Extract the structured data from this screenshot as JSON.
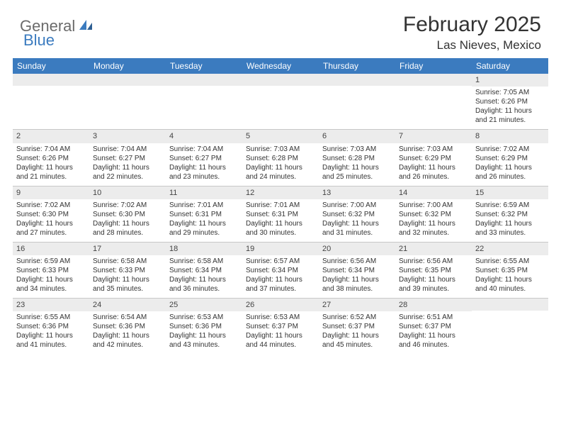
{
  "logo": {
    "text1": "General",
    "text2": "Blue"
  },
  "title": "February 2025",
  "location": "Las Nieves, Mexico",
  "colors": {
    "header_bg": "#3b7bbf",
    "daynum_bg": "#ececec",
    "border": "#c8c8c8",
    "logo_gray": "#6b6b6b",
    "logo_blue": "#3b7bbf"
  },
  "day_names": [
    "Sunday",
    "Monday",
    "Tuesday",
    "Wednesday",
    "Thursday",
    "Friday",
    "Saturday"
  ],
  "weeks": [
    [
      {
        "n": "",
        "sunrise": "",
        "sunset": "",
        "daylight": ""
      },
      {
        "n": "",
        "sunrise": "",
        "sunset": "",
        "daylight": ""
      },
      {
        "n": "",
        "sunrise": "",
        "sunset": "",
        "daylight": ""
      },
      {
        "n": "",
        "sunrise": "",
        "sunset": "",
        "daylight": ""
      },
      {
        "n": "",
        "sunrise": "",
        "sunset": "",
        "daylight": ""
      },
      {
        "n": "",
        "sunrise": "",
        "sunset": "",
        "daylight": ""
      },
      {
        "n": "1",
        "sunrise": "Sunrise: 7:05 AM",
        "sunset": "Sunset: 6:26 PM",
        "daylight": "Daylight: 11 hours and 21 minutes."
      }
    ],
    [
      {
        "n": "2",
        "sunrise": "Sunrise: 7:04 AM",
        "sunset": "Sunset: 6:26 PM",
        "daylight": "Daylight: 11 hours and 21 minutes."
      },
      {
        "n": "3",
        "sunrise": "Sunrise: 7:04 AM",
        "sunset": "Sunset: 6:27 PM",
        "daylight": "Daylight: 11 hours and 22 minutes."
      },
      {
        "n": "4",
        "sunrise": "Sunrise: 7:04 AM",
        "sunset": "Sunset: 6:27 PM",
        "daylight": "Daylight: 11 hours and 23 minutes."
      },
      {
        "n": "5",
        "sunrise": "Sunrise: 7:03 AM",
        "sunset": "Sunset: 6:28 PM",
        "daylight": "Daylight: 11 hours and 24 minutes."
      },
      {
        "n": "6",
        "sunrise": "Sunrise: 7:03 AM",
        "sunset": "Sunset: 6:28 PM",
        "daylight": "Daylight: 11 hours and 25 minutes."
      },
      {
        "n": "7",
        "sunrise": "Sunrise: 7:03 AM",
        "sunset": "Sunset: 6:29 PM",
        "daylight": "Daylight: 11 hours and 26 minutes."
      },
      {
        "n": "8",
        "sunrise": "Sunrise: 7:02 AM",
        "sunset": "Sunset: 6:29 PM",
        "daylight": "Daylight: 11 hours and 26 minutes."
      }
    ],
    [
      {
        "n": "9",
        "sunrise": "Sunrise: 7:02 AM",
        "sunset": "Sunset: 6:30 PM",
        "daylight": "Daylight: 11 hours and 27 minutes."
      },
      {
        "n": "10",
        "sunrise": "Sunrise: 7:02 AM",
        "sunset": "Sunset: 6:30 PM",
        "daylight": "Daylight: 11 hours and 28 minutes."
      },
      {
        "n": "11",
        "sunrise": "Sunrise: 7:01 AM",
        "sunset": "Sunset: 6:31 PM",
        "daylight": "Daylight: 11 hours and 29 minutes."
      },
      {
        "n": "12",
        "sunrise": "Sunrise: 7:01 AM",
        "sunset": "Sunset: 6:31 PM",
        "daylight": "Daylight: 11 hours and 30 minutes."
      },
      {
        "n": "13",
        "sunrise": "Sunrise: 7:00 AM",
        "sunset": "Sunset: 6:32 PM",
        "daylight": "Daylight: 11 hours and 31 minutes."
      },
      {
        "n": "14",
        "sunrise": "Sunrise: 7:00 AM",
        "sunset": "Sunset: 6:32 PM",
        "daylight": "Daylight: 11 hours and 32 minutes."
      },
      {
        "n": "15",
        "sunrise": "Sunrise: 6:59 AM",
        "sunset": "Sunset: 6:32 PM",
        "daylight": "Daylight: 11 hours and 33 minutes."
      }
    ],
    [
      {
        "n": "16",
        "sunrise": "Sunrise: 6:59 AM",
        "sunset": "Sunset: 6:33 PM",
        "daylight": "Daylight: 11 hours and 34 minutes."
      },
      {
        "n": "17",
        "sunrise": "Sunrise: 6:58 AM",
        "sunset": "Sunset: 6:33 PM",
        "daylight": "Daylight: 11 hours and 35 minutes."
      },
      {
        "n": "18",
        "sunrise": "Sunrise: 6:58 AM",
        "sunset": "Sunset: 6:34 PM",
        "daylight": "Daylight: 11 hours and 36 minutes."
      },
      {
        "n": "19",
        "sunrise": "Sunrise: 6:57 AM",
        "sunset": "Sunset: 6:34 PM",
        "daylight": "Daylight: 11 hours and 37 minutes."
      },
      {
        "n": "20",
        "sunrise": "Sunrise: 6:56 AM",
        "sunset": "Sunset: 6:34 PM",
        "daylight": "Daylight: 11 hours and 38 minutes."
      },
      {
        "n": "21",
        "sunrise": "Sunrise: 6:56 AM",
        "sunset": "Sunset: 6:35 PM",
        "daylight": "Daylight: 11 hours and 39 minutes."
      },
      {
        "n": "22",
        "sunrise": "Sunrise: 6:55 AM",
        "sunset": "Sunset: 6:35 PM",
        "daylight": "Daylight: 11 hours and 40 minutes."
      }
    ],
    [
      {
        "n": "23",
        "sunrise": "Sunrise: 6:55 AM",
        "sunset": "Sunset: 6:36 PM",
        "daylight": "Daylight: 11 hours and 41 minutes."
      },
      {
        "n": "24",
        "sunrise": "Sunrise: 6:54 AM",
        "sunset": "Sunset: 6:36 PM",
        "daylight": "Daylight: 11 hours and 42 minutes."
      },
      {
        "n": "25",
        "sunrise": "Sunrise: 6:53 AM",
        "sunset": "Sunset: 6:36 PM",
        "daylight": "Daylight: 11 hours and 43 minutes."
      },
      {
        "n": "26",
        "sunrise": "Sunrise: 6:53 AM",
        "sunset": "Sunset: 6:37 PM",
        "daylight": "Daylight: 11 hours and 44 minutes."
      },
      {
        "n": "27",
        "sunrise": "Sunrise: 6:52 AM",
        "sunset": "Sunset: 6:37 PM",
        "daylight": "Daylight: 11 hours and 45 minutes."
      },
      {
        "n": "28",
        "sunrise": "Sunrise: 6:51 AM",
        "sunset": "Sunset: 6:37 PM",
        "daylight": "Daylight: 11 hours and 46 minutes."
      },
      {
        "n": "",
        "sunrise": "",
        "sunset": "",
        "daylight": ""
      }
    ]
  ]
}
